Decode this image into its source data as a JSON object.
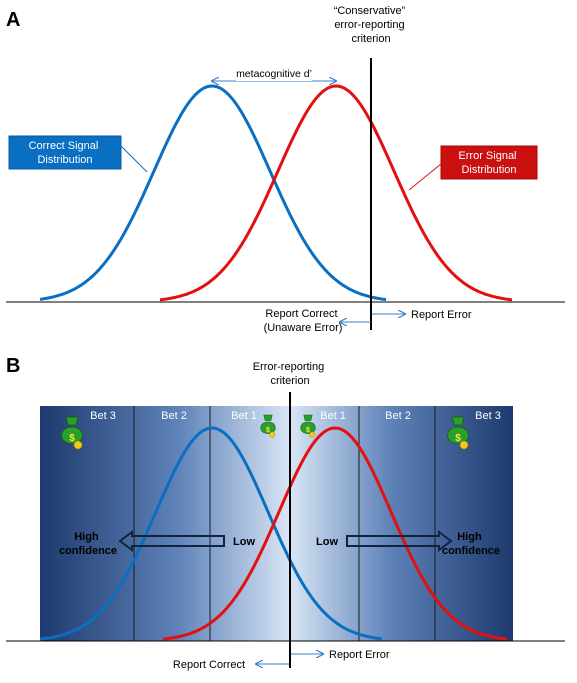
{
  "panel_a": {
    "label": "A",
    "criterion_label": [
      "“Conservative”",
      "error-reporting",
      "criterion"
    ],
    "metacognitive_label": "metacognitive d’",
    "correct_box": [
      "Correct Signal",
      "Distribution"
    ],
    "error_box": [
      "Error Signal",
      "Distribution"
    ],
    "report_correct": [
      "Report Correct",
      "(Unaware Error)"
    ],
    "report_error": "Report Error",
    "colors": {
      "correct": "#0a6fc2",
      "error": "#e31010",
      "criterion": "#000000"
    }
  },
  "panel_b": {
    "label": "B",
    "criterion_label": [
      "Error-reporting",
      "criterion"
    ],
    "bets": [
      "Bet 3",
      "Bet 2",
      "Bet 1",
      "Bet 1",
      "Bet 2",
      "Bet 3"
    ],
    "high_confidence_left": [
      "High",
      "confidence"
    ],
    "low_left": "Low",
    "low_right": "Low",
    "high_confidence_right": [
      "High",
      "confidence"
    ],
    "report_correct": "Report Correct",
    "report_error": "Report Error",
    "icon": "money-bag-icon",
    "colors": {
      "dark_band": "#1e3a6e",
      "light_band": "#d6e4f5",
      "correct": "#0a6fc2",
      "error": "#e31010"
    }
  }
}
